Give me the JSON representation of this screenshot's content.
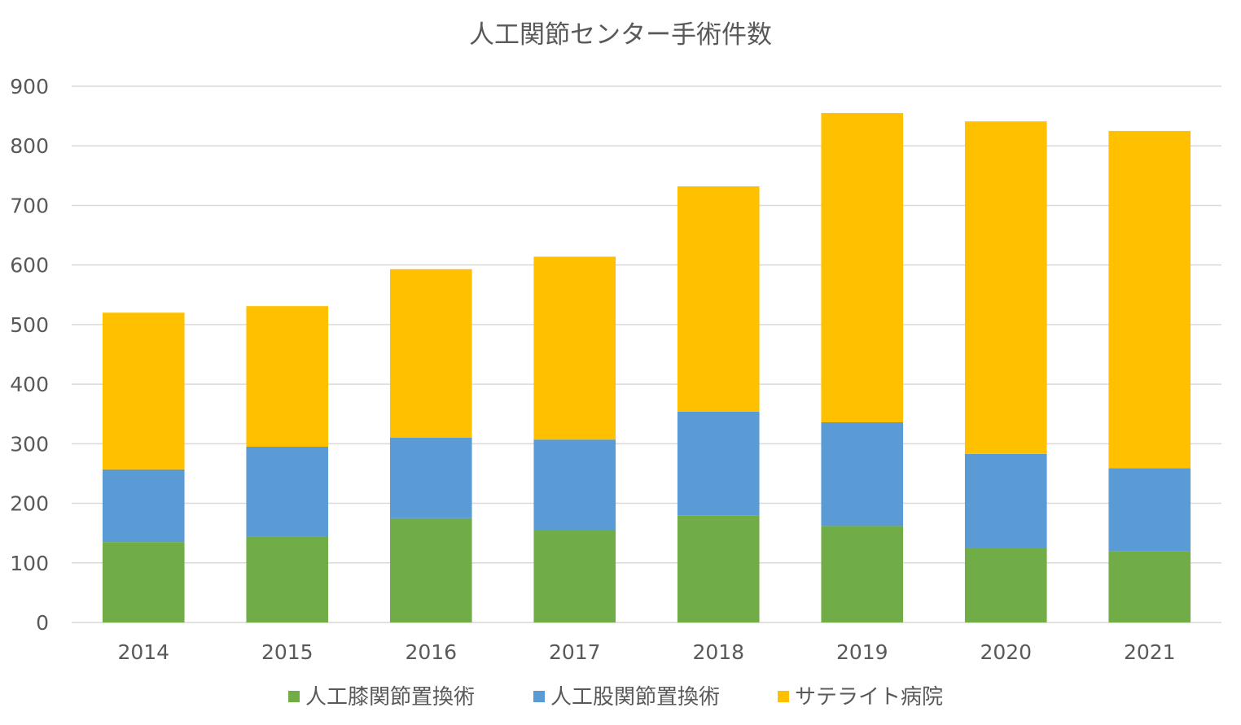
{
  "chart_data": {
    "type": "bar",
    "stacked": true,
    "title": "人工関節センター手術件数",
    "xlabel": "",
    "ylabel": "",
    "categories": [
      "2014",
      "2015",
      "2016",
      "2017",
      "2018",
      "2019",
      "2020",
      "2021"
    ],
    "series": [
      {
        "name": "人工膝関節置換術",
        "color": "#70ad47",
        "values": [
          135,
          144,
          175,
          155,
          180,
          162,
          125,
          120
        ]
      },
      {
        "name": "人工股関節置換術",
        "color": "#5b9bd5",
        "values": [
          122,
          151,
          135,
          152,
          174,
          174,
          158,
          139
        ]
      },
      {
        "name": "サテライト病院",
        "color": "#ffc000",
        "values": [
          263,
          236,
          283,
          307,
          378,
          519,
          558,
          566
        ]
      }
    ],
    "ylim": [
      0,
      900
    ],
    "yticks": [
      "0",
      "100",
      "200",
      "300",
      "400",
      "500",
      "600",
      "700",
      "800",
      "900"
    ],
    "grid": true,
    "legend_position": "bottom"
  }
}
